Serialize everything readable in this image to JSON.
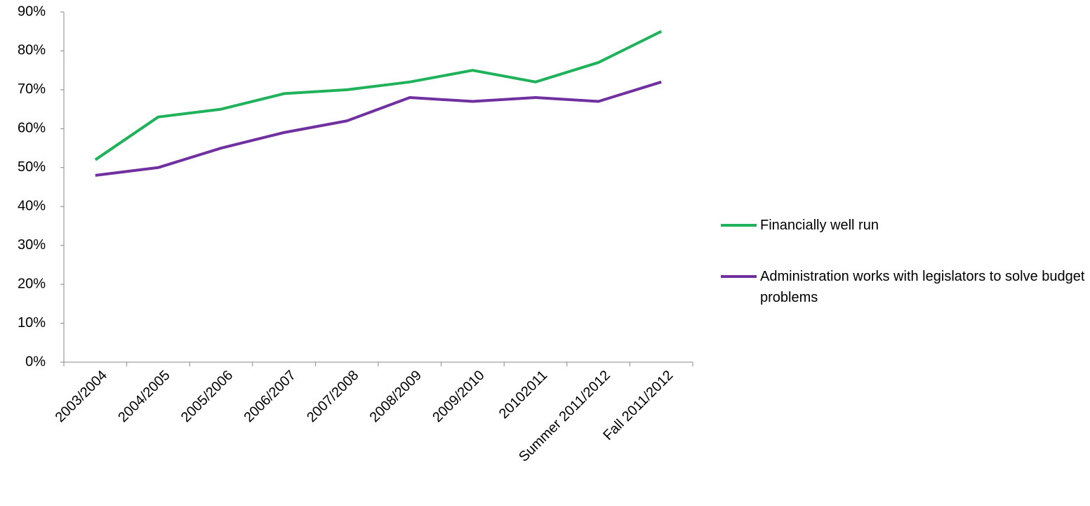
{
  "chart_data": {
    "type": "line",
    "categories": [
      "2003/2004",
      "2004/2005",
      "2005/2006",
      "2006/2007",
      "2007/2008",
      "2008/2009",
      "2009/2010",
      "20102011",
      "Summer 2011/2012",
      "Fall 2011/2012"
    ],
    "series": [
      {
        "name": "Financially well run",
        "color": "#1fb25a",
        "values": [
          52,
          63,
          65,
          69,
          70,
          72,
          75,
          72,
          77,
          85
        ]
      },
      {
        "name": "Administration works with legislators to solve budget problems",
        "color": "#7030a0",
        "values": [
          48,
          50,
          55,
          59,
          62,
          68,
          67,
          68,
          67,
          72
        ]
      }
    ],
    "ylim": [
      0,
      90
    ],
    "yticks": [
      {
        "value": 0,
        "label": "0%"
      },
      {
        "value": 10,
        "label": "10%"
      },
      {
        "value": 20,
        "label": "20%"
      },
      {
        "value": 30,
        "label": "30%"
      },
      {
        "value": 40,
        "label": "40%"
      },
      {
        "value": 50,
        "label": "50%"
      },
      {
        "value": 60,
        "label": "60%"
      },
      {
        "value": 70,
        "label": "70%"
      },
      {
        "value": 80,
        "label": "80%"
      },
      {
        "value": 90,
        "label": "90%"
      }
    ],
    "grid": false,
    "legend": "right"
  }
}
